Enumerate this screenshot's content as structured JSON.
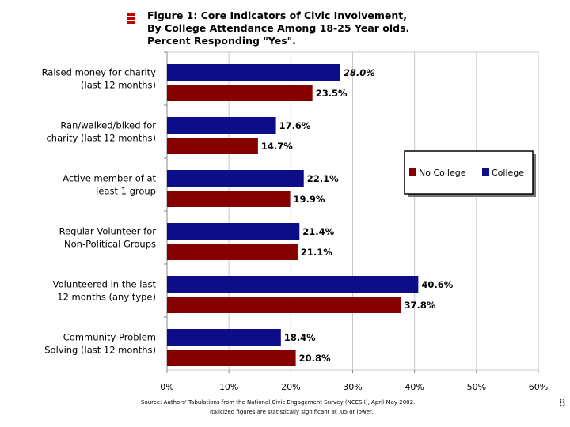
{
  "title_lines": [
    "Figure 1:  Core Indicators of Civic Involvement,",
    "By College Attendance Among 18-25 Year olds.",
    "Percent Responding \"Yes\"."
  ],
  "chart_data": {
    "type": "bar",
    "orientation": "horizontal",
    "categories": [
      [
        "Raised money for charity",
        "(last 12 months)"
      ],
      [
        "Ran/walked/biked for",
        "charity (last 12 months)"
      ],
      [
        "Active member of at",
        "least 1 group"
      ],
      [
        "Regular Volunteer for",
        "Non-Political Groups"
      ],
      [
        "Volunteered in the last",
        "12 months (any type)"
      ],
      [
        "Community Problem",
        "Solving (last 12 months)"
      ]
    ],
    "series": [
      {
        "name": "College",
        "color": "#0d0d8a",
        "values": [
          28.0,
          17.6,
          22.1,
          21.4,
          40.6,
          18.4
        ],
        "labels": [
          "28.0%",
          "17.6%",
          "22.1%",
          "21.4%",
          "40.6%",
          "18.4%"
        ],
        "italic": [
          true,
          false,
          false,
          false,
          false,
          false
        ]
      },
      {
        "name": "No College",
        "color": "#870000",
        "values": [
          23.5,
          14.7,
          19.9,
          21.1,
          37.8,
          20.8
        ],
        "labels": [
          "23.5%",
          "14.7%",
          "19.9%",
          "21.1%",
          "37.8%",
          "20.8%"
        ],
        "italic": [
          false,
          false,
          false,
          false,
          false,
          false
        ]
      }
    ],
    "xlim": [
      0,
      60
    ],
    "xticks": [
      0,
      10,
      20,
      30,
      40,
      50,
      60
    ],
    "xtick_labels": [
      "0%",
      "10%",
      "20%",
      "30%",
      "40%",
      "50%",
      "60%"
    ],
    "legend_order": [
      "No College",
      "College"
    ],
    "grid": "vertical",
    "legend_position": "right-middle"
  },
  "footer": {
    "source": "Source:  Authors' Tabulations from the National Civic Engagement Survey (NCES I), April-May 2002.",
    "note": "Italicized figures are statistically significant at .05 or lower."
  },
  "page_number": "8"
}
